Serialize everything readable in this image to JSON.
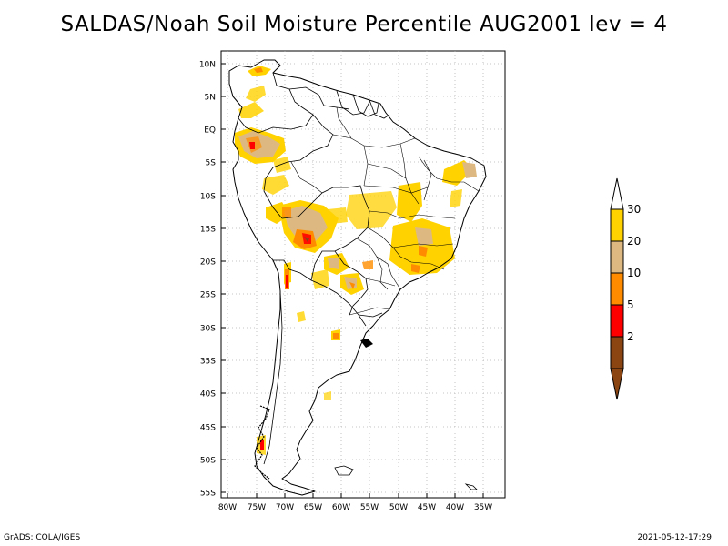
{
  "title": "SALDAS/Noah Soil Moisture Percentile AUG2001 lev = 4",
  "footer": {
    "left": "GrADS: COLA/IGES",
    "right": "2021-05-12-17:29"
  },
  "map": {
    "lat_labels": [
      "10N",
      "5N",
      "EQ",
      "5S",
      "10S",
      "15S",
      "20S",
      "25S",
      "30S",
      "35S",
      "40S",
      "45S",
      "50S",
      "55S"
    ],
    "lon_labels": [
      "80W",
      "75W",
      "70W",
      "65W",
      "60W",
      "55W",
      "50W",
      "45W",
      "40W",
      "35W"
    ]
  },
  "legend": {
    "bins": [
      {
        "label": "30",
        "color": "#ffd200"
      },
      {
        "label": "20",
        "color": "#ddb981"
      },
      {
        "label": "10",
        "color": "#ff8c00"
      },
      {
        "label": "5",
        "color": "#ff0000"
      },
      {
        "label": "2",
        "color": "#8b4513"
      }
    ],
    "top_arrow_color": "#ffffff",
    "bottom_arrow_color": "#8b4513"
  },
  "colors": {
    "gold": "#ffd200",
    "tan": "#ddb981",
    "orange": "#ff8c00",
    "red": "#ff0000",
    "brown": "#8b4513",
    "grid": "#b4b4b4"
  }
}
